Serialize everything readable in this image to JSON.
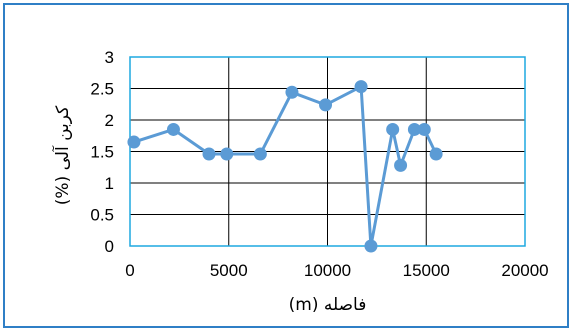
{
  "chart_data": {
    "type": "line",
    "xlabel": "فاصله (m)",
    "ylabel": "کربن آلی (%)",
    "xlim": [
      0,
      20000
    ],
    "ylim": [
      0,
      3
    ],
    "x_ticks": [
      "0",
      "5000",
      "10000",
      "15000",
      "20000"
    ],
    "y_ticks": [
      "0",
      "0.5",
      "1",
      "1.5",
      "2",
      "2.5",
      "3"
    ],
    "grid": true,
    "legend": "none",
    "series": [
      {
        "color": "#5b9bd5",
        "points": [
          {
            "x": 200,
            "y": 1.65
          },
          {
            "x": 2200,
            "y": 1.85
          },
          {
            "x": 4000,
            "y": 1.46
          },
          {
            "x": 4900,
            "y": 1.46
          },
          {
            "x": 6600,
            "y": 1.46
          },
          {
            "x": 8200,
            "y": 2.44
          },
          {
            "x": 9900,
            "y": 2.24
          },
          {
            "x": 11700,
            "y": 2.53
          },
          {
            "x": 12200,
            "y": 0.0
          },
          {
            "x": 13300,
            "y": 1.85
          },
          {
            "x": 13700,
            "y": 1.28
          },
          {
            "x": 14400,
            "y": 1.85
          },
          {
            "x": 14900,
            "y": 1.85
          },
          {
            "x": 15500,
            "y": 1.46
          }
        ]
      }
    ]
  },
  "colors": {
    "frame_border": "#2f7fc6",
    "plot_border": "#1ea8e0",
    "gridline": "#000000",
    "series": "#5b9bd5"
  }
}
